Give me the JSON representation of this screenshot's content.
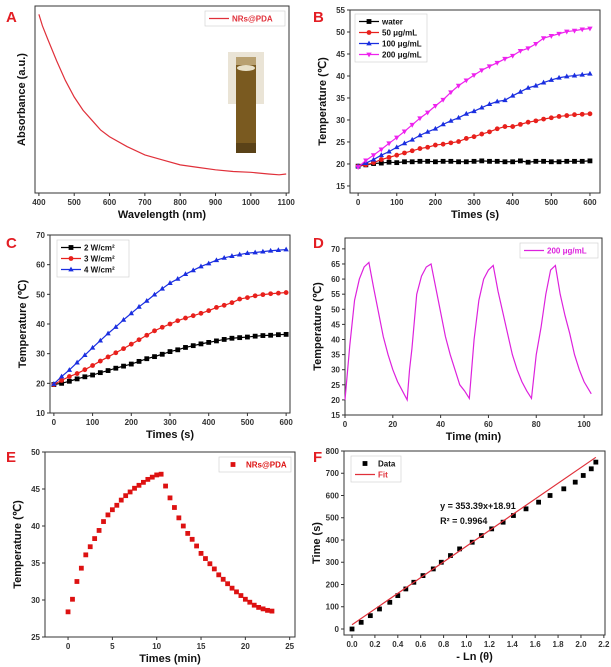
{
  "chart_data": [
    {
      "panel": "A",
      "type": "line",
      "xlabel": "Wavelength (nm)",
      "ylabel": "Absorbance (a.u.)",
      "xlim": [
        389,
        1108
      ],
      "ylim": [
        -0.08,
        1.05
      ],
      "xticks": [
        400,
        500,
        600,
        700,
        800,
        900,
        1000,
        1100
      ],
      "yticks": [],
      "legend": "top-right",
      "inset": "cuvette-photo",
      "series": [
        {
          "name": "NRs@PDA",
          "color": "#e0303a",
          "marker": "none",
          "line": true,
          "points": [
            [
              400,
              1.0
            ],
            [
              410,
              0.93
            ],
            [
              425,
              0.85
            ],
            [
              450,
              0.72
            ],
            [
              475,
              0.6
            ],
            [
              500,
              0.5
            ],
            [
              525,
              0.42
            ],
            [
              550,
              0.36
            ],
            [
              575,
              0.3
            ],
            [
              600,
              0.26
            ],
            [
              650,
              0.2
            ],
            [
              700,
              0.15
            ],
            [
              750,
              0.12
            ],
            [
              800,
              0.09
            ],
            [
              850,
              0.075
            ],
            [
              900,
              0.06
            ],
            [
              950,
              0.05
            ],
            [
              1000,
              0.045
            ],
            [
              1050,
              0.035
            ],
            [
              1080,
              0.03
            ],
            [
              1100,
              0.035
            ]
          ]
        }
      ]
    },
    {
      "panel": "B",
      "type": "line",
      "xlabel": "Times (s)",
      "ylabel": "Temperature (℃)",
      "xlim": [
        -21,
        626
      ],
      "ylim": [
        13.4,
        55
      ],
      "xticks": [
        0,
        100,
        200,
        300,
        400,
        500,
        600
      ],
      "yticks": [
        15,
        20,
        25,
        30,
        35,
        40,
        45,
        50,
        55
      ],
      "legend": "top-left",
      "x_step": 20,
      "series": [
        {
          "name": "water",
          "color": "#000000",
          "marker": "square",
          "line": true,
          "values": [
            19.5,
            19.8,
            20.1,
            20.2,
            20.4,
            20.3,
            20.5,
            20.5,
            20.6,
            20.6,
            20.5,
            20.6,
            20.6,
            20.5,
            20.5,
            20.6,
            20.7,
            20.6,
            20.6,
            20.5,
            20.5,
            20.7,
            20.4,
            20.6,
            20.6,
            20.5,
            20.5,
            20.6,
            20.6,
            20.6,
            20.7
          ]
        },
        {
          "name": "50  μg/mL",
          "color": "#e8201c",
          "marker": "circle",
          "line": true,
          "values": [
            19.5,
            19.8,
            20.3,
            21,
            21.5,
            22,
            22.5,
            23,
            23.5,
            23.8,
            24.3,
            24.5,
            24.8,
            25.1,
            25.8,
            26.2,
            26.8,
            27.3,
            28,
            28.5,
            28.5,
            29,
            29.5,
            29.8,
            30.2,
            30.5,
            30.8,
            31,
            31.2,
            31.3,
            31.4
          ]
        },
        {
          "name": "100 μg/mL",
          "color": "#1a2ee0",
          "marker": "triangle-up",
          "line": true,
          "values": [
            19.5,
            20.2,
            21,
            22,
            22.8,
            23.8,
            24.7,
            25.5,
            26.5,
            27.3,
            28,
            29,
            29.8,
            30.5,
            31.4,
            32,
            32.8,
            33.6,
            34.2,
            34.5,
            35.5,
            36.4,
            37.3,
            37.8,
            38.5,
            39.1,
            39.6,
            39.9,
            40.1,
            40.3,
            40.5
          ]
        },
        {
          "name": "200 μg/mL",
          "color": "#ee22ee",
          "marker": "triangle-down",
          "line": true,
          "values": [
            19.3,
            20.8,
            22,
            23.3,
            24.7,
            26,
            27.4,
            28.9,
            30.4,
            31.7,
            33.2,
            34.6,
            36.3,
            37.8,
            39,
            40.2,
            41.3,
            42.2,
            43,
            43.9,
            44.6,
            45.7,
            46.3,
            47.3,
            48.6,
            49.1,
            49.6,
            50.1,
            50.3,
            50.6,
            50.8
          ]
        }
      ]
    },
    {
      "panel": "C",
      "type": "line",
      "xlabel": "Times (s)",
      "ylabel": "Temperature (℃)",
      "xlim": [
        -10,
        610
      ],
      "ylim": [
        10,
        70
      ],
      "xticks": [
        0,
        100,
        200,
        300,
        400,
        500,
        600
      ],
      "yticks": [
        10,
        20,
        30,
        40,
        50,
        60,
        70
      ],
      "legend": "top-left",
      "x_step": 20,
      "series": [
        {
          "name": "2 W/cm²",
          "color": "#000000",
          "marker": "square",
          "line": true,
          "values": [
            19.6,
            20,
            20.7,
            21.5,
            22.2,
            22.8,
            23.6,
            24.3,
            25.1,
            25.8,
            26.5,
            27.4,
            28.3,
            29,
            29.8,
            30.7,
            31.3,
            32.1,
            32.7,
            33.3,
            33.8,
            34.3,
            34.8,
            35.2,
            35.4,
            35.6,
            35.9,
            36.1,
            36.2,
            36.4,
            36.5
          ]
        },
        {
          "name": "3 W/cm²",
          "color": "#e8201c",
          "marker": "circle",
          "line": true,
          "values": [
            19.6,
            21,
            22.3,
            23.3,
            24.6,
            26,
            27.5,
            28.9,
            30.3,
            31.7,
            33.2,
            34.7,
            36.2,
            37.7,
            38.9,
            40,
            41.1,
            42,
            42.8,
            43.6,
            44.5,
            45.6,
            46.3,
            47.2,
            48.4,
            48.9,
            49.5,
            49.9,
            50.2,
            50.4,
            50.6
          ]
        },
        {
          "name": "4 W/cm²",
          "color": "#1a2ee0",
          "marker": "triangle-up",
          "line": true,
          "values": [
            19.8,
            22.3,
            24.5,
            27,
            29.5,
            32,
            34.4,
            36.8,
            39,
            41.4,
            43.6,
            45.8,
            47.8,
            49.9,
            51.9,
            53.8,
            55.2,
            56.8,
            58.1,
            59.4,
            60.4,
            61.5,
            62.3,
            62.9,
            63.4,
            63.9,
            64.1,
            64.4,
            64.7,
            64.9,
            65.1
          ]
        }
      ]
    },
    {
      "panel": "D",
      "type": "line",
      "xlabel": "Time (min)",
      "ylabel": "Temperature (℃)",
      "xlim": [
        0,
        107.5
      ],
      "ylim": [
        15,
        73.6
      ],
      "xticks": [
        0,
        20,
        40,
        60,
        80,
        100
      ],
      "yticks": [
        15,
        20,
        25,
        30,
        35,
        40,
        45,
        50,
        55,
        60,
        65,
        70
      ],
      "legend": "top-right",
      "series": [
        {
          "name": "200 μg/mL",
          "color": "#dd22dd",
          "marker": "none",
          "line": true,
          "points": [
            [
              0,
              20
            ],
            [
              2,
              38
            ],
            [
              4,
              53
            ],
            [
              6,
              60
            ],
            [
              8,
              64
            ],
            [
              10,
              65.5
            ],
            [
              12,
              57
            ],
            [
              14,
              49
            ],
            [
              16,
              41
            ],
            [
              18,
              35
            ],
            [
              20,
              30
            ],
            [
              22,
              26
            ],
            [
              24,
              23
            ],
            [
              26,
              20
            ],
            [
              27,
              30
            ],
            [
              28,
              37
            ],
            [
              30,
              55
            ],
            [
              32,
              61
            ],
            [
              34,
              64
            ],
            [
              36,
              65
            ],
            [
              38,
              57
            ],
            [
              40,
              49
            ],
            [
              42,
              41
            ],
            [
              44,
              35
            ],
            [
              46,
              30
            ],
            [
              48,
              25
            ],
            [
              50,
              23
            ],
            [
              52,
              20.5
            ],
            [
              54,
              40
            ],
            [
              56,
              53
            ],
            [
              58,
              60
            ],
            [
              60,
              63
            ],
            [
              62,
              64.5
            ],
            [
              64,
              56
            ],
            [
              66,
              49
            ],
            [
              68,
              42
            ],
            [
              70,
              35
            ],
            [
              72,
              30
            ],
            [
              74,
              26
            ],
            [
              76,
              23
            ],
            [
              78,
              20.5
            ],
            [
              80,
              35
            ],
            [
              82,
              44
            ],
            [
              84,
              55
            ],
            [
              86,
              63
            ],
            [
              88,
              64.5
            ],
            [
              90,
              55
            ],
            [
              92,
              48
            ],
            [
              94,
              42
            ],
            [
              96,
              35
            ],
            [
              98,
              30
            ],
            [
              100,
              26
            ],
            [
              103,
              22
            ]
          ]
        }
      ]
    },
    {
      "panel": "E",
      "type": "scatter",
      "xlabel": "Times (min)",
      "ylabel": "Temperature (℃)",
      "xlim": [
        -2.6,
        25.6
      ],
      "ylim": [
        25,
        50
      ],
      "xticks": [
        0,
        5,
        10,
        15,
        20,
        25
      ],
      "yticks": [
        25,
        30,
        35,
        40,
        45,
        50
      ],
      "legend": "top-right",
      "x_step": 0.5,
      "series": [
        {
          "name": "NRs@PDA",
          "color": "#dd1111",
          "marker": "square",
          "line": false,
          "values": [
            28.4,
            30.1,
            32.5,
            34.3,
            36.1,
            37.2,
            38.3,
            39.4,
            40.6,
            41.5,
            42.2,
            42.8,
            43.5,
            44.1,
            44.6,
            45.1,
            45.5,
            45.9,
            46.3,
            46.6,
            46.9,
            47.0,
            45.4,
            43.8,
            42.5,
            41.1,
            40,
            39,
            38.2,
            37.3,
            36.3,
            35.6,
            34.9,
            34.2,
            33.4,
            32.8,
            32.2,
            31.6,
            31.1,
            30.6,
            30.1,
            29.7,
            29.3,
            29,
            28.8,
            28.6,
            28.5
          ]
        }
      ]
    },
    {
      "panel": "F",
      "type": "scatter",
      "xlabel": "- Ln (θ)",
      "ylabel": "Time (s)",
      "xlim": [
        -0.07,
        2.21
      ],
      "ylim": [
        -27,
        800
      ],
      "xticks": [
        0.0,
        0.2,
        0.4,
        0.6,
        0.8,
        1.0,
        1.2,
        1.4,
        1.6,
        1.8,
        2.0,
        2.2
      ],
      "yticks": [
        0,
        100,
        200,
        300,
        400,
        500,
        600,
        700,
        800
      ],
      "legend": "top-left",
      "annotation": [
        "y = 353.39x+18.91",
        "R² = 0.9964"
      ],
      "series": [
        {
          "name": "Data",
          "color": "#000000",
          "marker": "square",
          "line": false,
          "points": [
            [
              0,
              0
            ],
            [
              0.08,
              30
            ],
            [
              0.16,
              60
            ],
            [
              0.24,
              90
            ],
            [
              0.33,
              120
            ],
            [
              0.4,
              150
            ],
            [
              0.47,
              180
            ],
            [
              0.54,
              210
            ],
            [
              0.62,
              240
            ],
            [
              0.71,
              270
            ],
            [
              0.78,
              300
            ],
            [
              0.86,
              330
            ],
            [
              0.94,
              360
            ],
            [
              1.05,
              390
            ],
            [
              1.13,
              420
            ],
            [
              1.22,
              450
            ],
            [
              1.32,
              480
            ],
            [
              1.41,
              510
            ],
            [
              1.52,
              540
            ],
            [
              1.63,
              570
            ],
            [
              1.73,
              600
            ],
            [
              1.85,
              630
            ],
            [
              1.95,
              660
            ],
            [
              2.02,
              690
            ],
            [
              2.09,
              720
            ],
            [
              2.13,
              750
            ]
          ]
        },
        {
          "name": "Fit",
          "color": "#e0303a",
          "marker": "none",
          "line": true,
          "points": [
            [
              0,
              18.91
            ],
            [
              2.13,
              771.62
            ]
          ]
        }
      ]
    }
  ]
}
